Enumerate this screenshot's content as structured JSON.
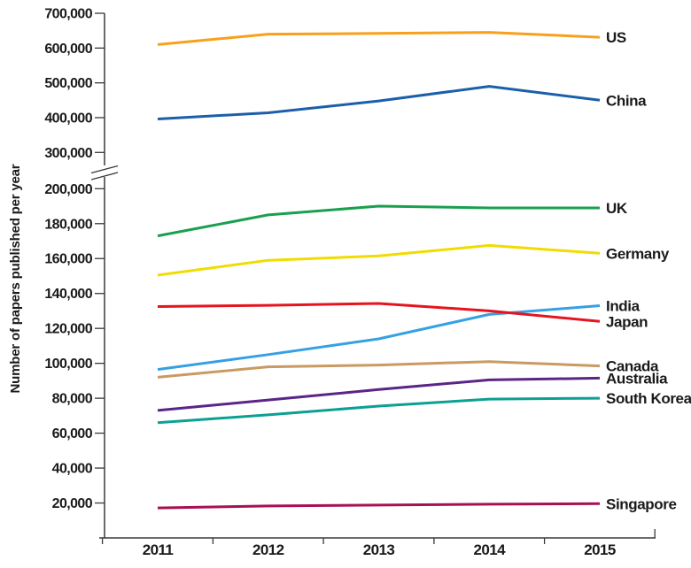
{
  "chart_data": {
    "type": "line",
    "title": "",
    "xlabel": "",
    "ylabel": "Number of papers published per year",
    "x": [
      2011,
      2012,
      2013,
      2014,
      2015
    ],
    "x_tick_labels": [
      "2011",
      "2012",
      "2013",
      "2014",
      "2015"
    ],
    "grid": false,
    "legend_position": "right-end-labels",
    "broken_y_axis": {
      "upper_range": [
        300000,
        700000
      ],
      "upper_tick_step": 100000,
      "lower_range": [
        0,
        200000
      ],
      "lower_tick_step": 20000
    },
    "y_ticks_upper": [
      {
        "value": 700000,
        "label": "700,000"
      },
      {
        "value": 600000,
        "label": "600,000"
      },
      {
        "value": 500000,
        "label": "500,000"
      },
      {
        "value": 400000,
        "label": "400,000"
      },
      {
        "value": 300000,
        "label": "300,000"
      }
    ],
    "y_ticks_lower": [
      {
        "value": 200000,
        "label": "200,000"
      },
      {
        "value": 180000,
        "label": "180,000"
      },
      {
        "value": 160000,
        "label": "160,000"
      },
      {
        "value": 140000,
        "label": "140,000"
      },
      {
        "value": 120000,
        "label": "120,000"
      },
      {
        "value": 100000,
        "label": "100,000"
      },
      {
        "value": 80000,
        "label": "80,000"
      },
      {
        "value": 60000,
        "label": "60,000"
      },
      {
        "value": 40000,
        "label": "40,000"
      },
      {
        "value": 20000,
        "label": "20,000"
      }
    ],
    "series": [
      {
        "name": "US",
        "color": "#F9A01B",
        "values": [
          610000,
          640000,
          642000,
          645000,
          631000
        ]
      },
      {
        "name": "China",
        "color": "#1B5FAA",
        "values": [
          396000,
          414000,
          448000,
          490000,
          450000
        ]
      },
      {
        "name": "UK",
        "color": "#18A04E",
        "values": [
          173000,
          185000,
          190000,
          189000,
          189000
        ]
      },
      {
        "name": "Germany",
        "color": "#F0DC00",
        "values": [
          150500,
          159000,
          161500,
          167500,
          163000
        ]
      },
      {
        "name": "India",
        "color": "#35A0E2",
        "values": [
          96500,
          105000,
          114000,
          128000,
          133000
        ]
      },
      {
        "name": "Japan",
        "color": "#E5141E",
        "values": [
          132500,
          133200,
          134300,
          130000,
          124000
        ]
      },
      {
        "name": "Canada",
        "color": "#CA9A62",
        "values": [
          92000,
          98000,
          99000,
          101000,
          98500
        ]
      },
      {
        "name": "Australia",
        "color": "#5B2487",
        "values": [
          73000,
          79000,
          85000,
          90500,
          91500
        ]
      },
      {
        "name": "South Korea",
        "color": "#0BA093",
        "values": [
          66000,
          70500,
          75500,
          79500,
          80000
        ]
      },
      {
        "name": "Singapore",
        "color": "#A81052",
        "values": [
          17200,
          18300,
          18800,
          19300,
          19600
        ]
      }
    ],
    "axis_color": "#3a3a3a"
  }
}
